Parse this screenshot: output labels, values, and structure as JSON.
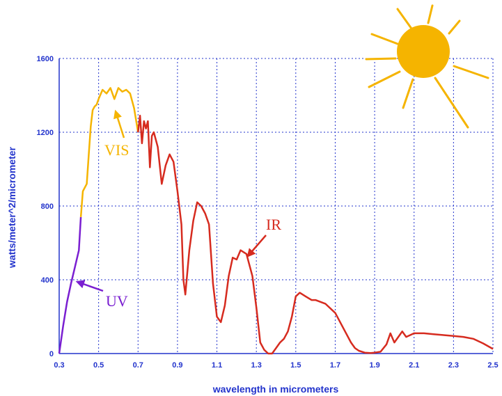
{
  "chart_data": {
    "type": "line",
    "xlabel": "wavelength in micrometers",
    "ylabel": "watts/meter^2/micrometer",
    "xlim": [
      0.3,
      2.5
    ],
    "ylim": [
      0,
      1600
    ],
    "grid": true,
    "xticks": [
      0.3,
      0.5,
      0.7,
      0.9,
      1.1,
      1.3,
      1.5,
      1.7,
      1.9,
      2.1,
      2.3,
      2.5
    ],
    "xtick_labels": [
      "0.3",
      "0.5",
      "0.7",
      "0.9",
      "1.1",
      "1.3",
      "1.5",
      "1.7",
      "1.9",
      "2.1",
      "2.3",
      "2.5"
    ],
    "yticks": [
      0,
      400,
      800,
      1200,
      1600
    ],
    "ytick_labels": [
      "0",
      "400",
      "800",
      "1200",
      "1600"
    ],
    "colors": {
      "axis": "#2233cc",
      "grid": "#2233cc",
      "uv": "#7a1fd1",
      "vis": "#f5b400",
      "ir": "#d62b1f",
      "sun": "#f5b400",
      "text": "#2233cc"
    },
    "series": [
      {
        "name": "UV",
        "x": [
          0.3,
          0.32,
          0.34,
          0.36,
          0.38,
          0.4,
          0.41
        ],
        "y": [
          0,
          150,
          280,
          380,
          470,
          560,
          740
        ]
      },
      {
        "name": "VIS",
        "x": [
          0.41,
          0.42,
          0.43,
          0.44,
          0.45,
          0.46,
          0.47,
          0.48,
          0.49,
          0.5,
          0.52,
          0.54,
          0.56,
          0.58,
          0.6,
          0.62,
          0.64,
          0.66,
          0.68,
          0.7
        ],
        "y": [
          740,
          880,
          900,
          920,
          1080,
          1230,
          1320,
          1340,
          1350,
          1380,
          1430,
          1410,
          1440,
          1380,
          1440,
          1420,
          1430,
          1410,
          1330,
          1200
        ]
      },
      {
        "name": "IR",
        "x": [
          0.7,
          0.71,
          0.72,
          0.73,
          0.74,
          0.75,
          0.76,
          0.77,
          0.78,
          0.8,
          0.82,
          0.84,
          0.86,
          0.88,
          0.9,
          0.92,
          0.93,
          0.94,
          0.96,
          0.98,
          1.0,
          1.02,
          1.04,
          1.06,
          1.08,
          1.1,
          1.12,
          1.14,
          1.16,
          1.18,
          1.2,
          1.22,
          1.25,
          1.28,
          1.3,
          1.32,
          1.34,
          1.36,
          1.38,
          1.4,
          1.42,
          1.44,
          1.46,
          1.48,
          1.5,
          1.52,
          1.55,
          1.58,
          1.6,
          1.65,
          1.7,
          1.75,
          1.78,
          1.8,
          1.82,
          1.85,
          1.88,
          1.9,
          1.93,
          1.96,
          1.98,
          2.0,
          2.02,
          2.04,
          2.06,
          2.08,
          2.1,
          2.15,
          2.2,
          2.25,
          2.3,
          2.35,
          2.4,
          2.45,
          2.5
        ],
        "y": [
          1200,
          1290,
          1140,
          1260,
          1220,
          1260,
          1010,
          1180,
          1200,
          1120,
          920,
          1020,
          1080,
          1040,
          880,
          700,
          400,
          320,
          560,
          720,
          820,
          800,
          760,
          700,
          380,
          200,
          170,
          260,
          420,
          520,
          510,
          560,
          540,
          420,
          250,
          60,
          20,
          0,
          0,
          30,
          60,
          80,
          120,
          200,
          310,
          330,
          310,
          290,
          290,
          270,
          220,
          120,
          60,
          30,
          15,
          5,
          3,
          5,
          10,
          50,
          110,
          60,
          90,
          120,
          90,
          100,
          110,
          110,
          105,
          100,
          95,
          90,
          80,
          55,
          25
        ]
      }
    ],
    "annotations": [
      {
        "text": "UV",
        "color": "#7a1fd1"
      },
      {
        "text": "VIS",
        "color": "#f5b400"
      },
      {
        "text": "IR",
        "color": "#d62b1f"
      }
    ]
  }
}
